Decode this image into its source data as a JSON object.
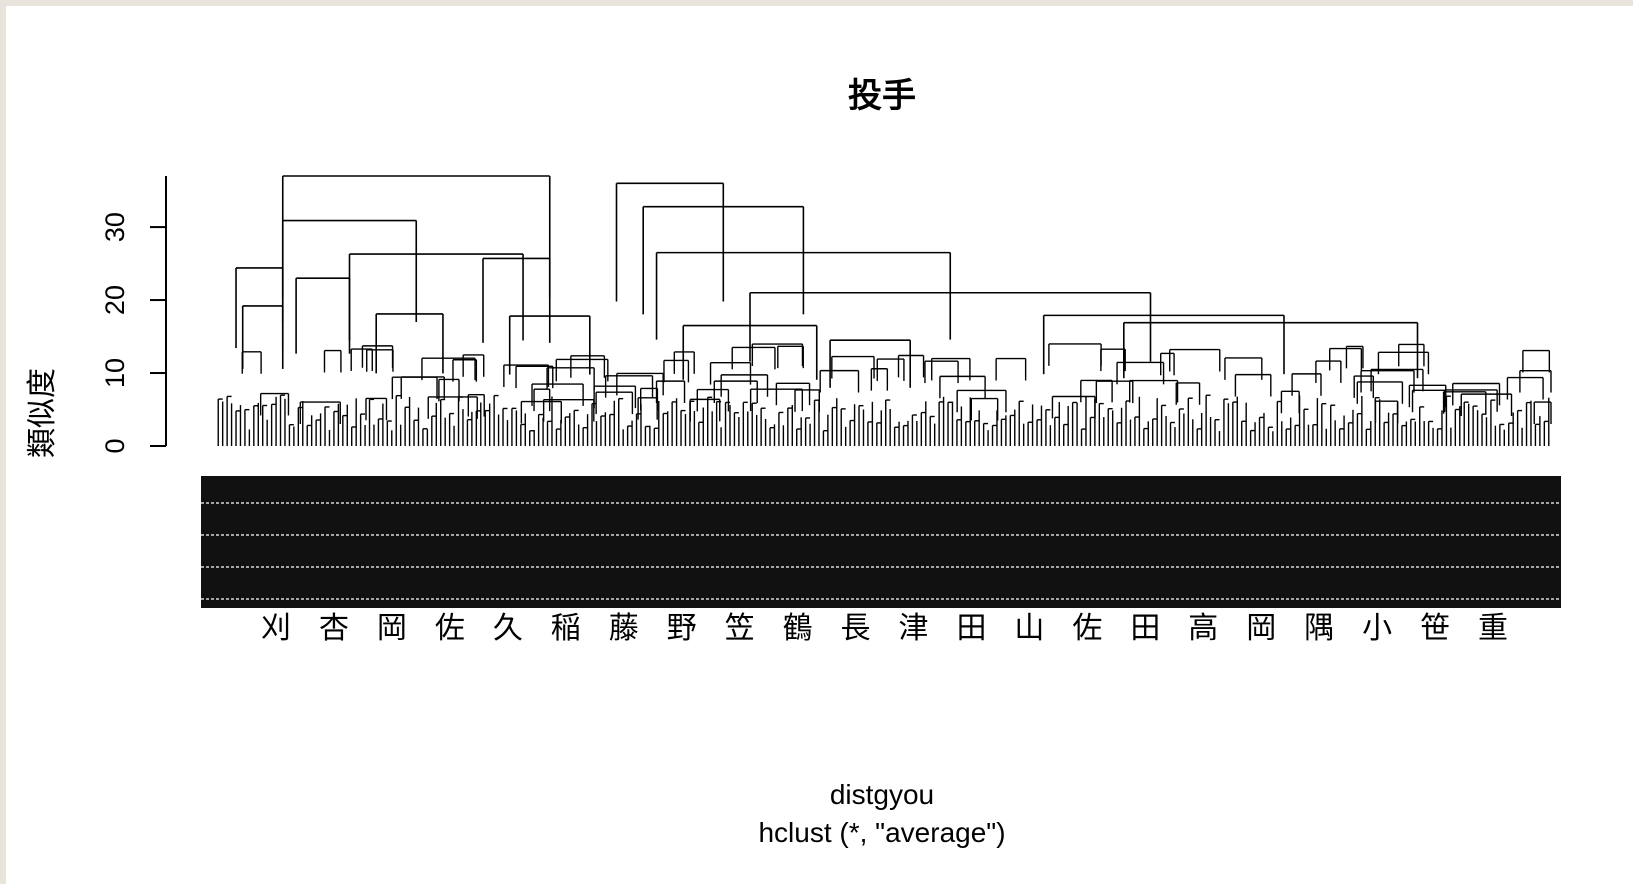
{
  "chart_data": {
    "type": "dendrogram",
    "title": "投手",
    "xlabel": "distgyou",
    "sub": "hclust (*, \"average\")",
    "ylabel": "類似度",
    "ylim": [
      0,
      37
    ],
    "yticks": [
      0,
      10,
      20,
      30
    ],
    "ytick_labels": [
      "0",
      "10",
      "20",
      "30"
    ],
    "leaf_labels_visible": [
      "刈",
      "杏",
      "岡",
      "佐",
      "久",
      "稲",
      "藤",
      "野",
      "笠",
      "鶴",
      "長",
      "津",
      "田",
      "山",
      "佐",
      "田",
      "高",
      "岡",
      "隅",
      "小",
      "笹",
      "重"
    ],
    "line_color": "#000000",
    "merges": [
      {
        "a": 0.05,
        "b": 0.25,
        "h": 37.0
      },
      {
        "a": 0.05,
        "b": 0.15,
        "h": 30.9
      },
      {
        "a": 0.015,
        "b": 0.05,
        "h": 24.4
      },
      {
        "a": 0.1,
        "b": 0.23,
        "h": 26.3
      },
      {
        "a": 0.06,
        "b": 0.1,
        "h": 23.0
      },
      {
        "a": 0.2,
        "b": 0.25,
        "h": 25.7
      },
      {
        "a": 0.3,
        "b": 0.38,
        "h": 36.0
      },
      {
        "a": 0.32,
        "b": 0.44,
        "h": 32.8
      },
      {
        "a": 0.33,
        "b": 0.55,
        "h": 26.5
      },
      {
        "a": 0.4,
        "b": 0.7,
        "h": 21.0
      },
      {
        "a": 0.62,
        "b": 0.8,
        "h": 17.9
      },
      {
        "a": 0.68,
        "b": 0.9,
        "h": 16.9
      },
      {
        "a": 0.35,
        "b": 0.45,
        "h": 16.5
      },
      {
        "a": 0.46,
        "b": 0.52,
        "h": 14.5
      },
      {
        "a": 0.02,
        "b": 0.05,
        "h": 19.2
      },
      {
        "a": 0.12,
        "b": 0.17,
        "h": 18.1
      },
      {
        "a": 0.22,
        "b": 0.28,
        "h": 17.8
      }
    ]
  }
}
